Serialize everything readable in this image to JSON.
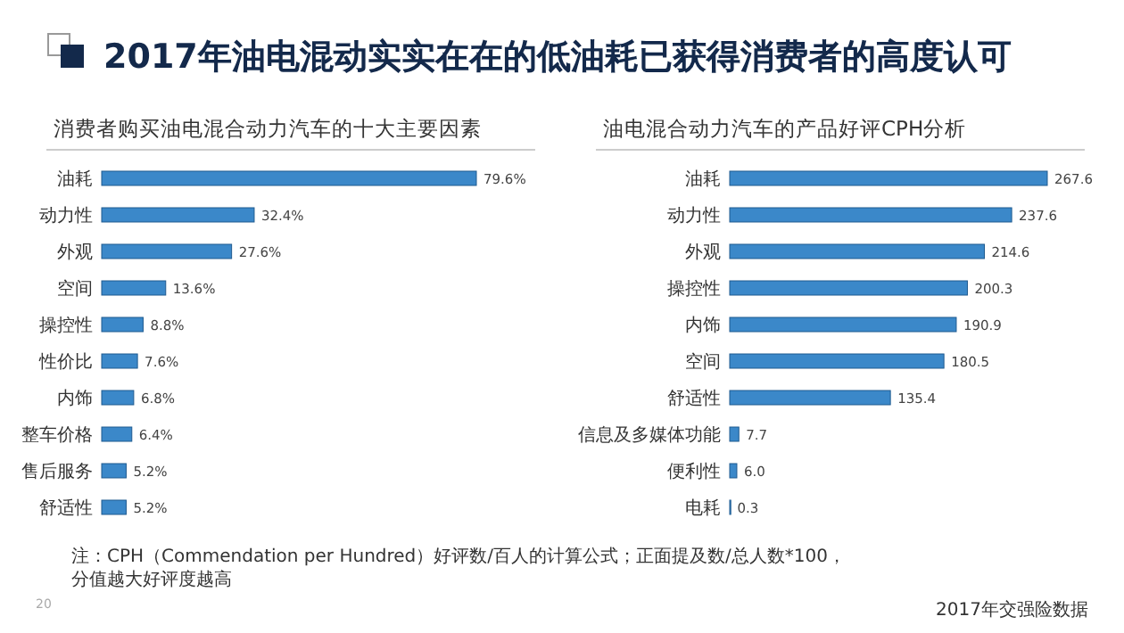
{
  "chart_data": [
    {
      "type": "bar",
      "orientation": "horizontal",
      "title": "2017年油电混动实实在在的低油耗已获得消费者的高度认可",
      "subtitle": "消费者购买油电混合动力汽车的十大主要因素",
      "categories": [
        "油耗",
        "动力性",
        "外观",
        "空间",
        "操控性",
        "性价比",
        "内饰",
        "整车价格",
        "售后服务",
        "舒适性"
      ],
      "values": [
        79.6,
        32.4,
        27.6,
        13.6,
        8.8,
        7.6,
        6.8,
        6.4,
        5.2,
        5.2
      ],
      "value_labels": [
        "79.6%",
        "32.4%",
        "27.6%",
        "13.6%",
        "8.8%",
        "7.6%",
        "6.8%",
        "6.4%",
        "5.2%",
        "5.2%"
      ],
      "color": "#3b88c9",
      "annotations": [
        "注：CPH（Commendation per Hundred）好评数/百人的计算公式；正面提及数/总人数*100，分值越大好评度越高",
        "20"
      ]
    },
    {
      "type": "bar",
      "orientation": "horizontal",
      "title": "油电混合动力汽车的产品好评CPH分析",
      "categories": [
        "油耗",
        "动力性",
        "外观",
        "操控性",
        "内饰",
        "空间",
        "舒适性",
        "信息及多媒体功能",
        "便利性",
        "电耗"
      ],
      "values": [
        267.6,
        237.6,
        214.6,
        200.3,
        190.9,
        180.5,
        135.4,
        7.7,
        6.0,
        0.3
      ],
      "value_labels": [
        "267.6",
        "237.6",
        "214.6",
        "200.3",
        "190.9",
        "180.5",
        "135.4",
        "7.7",
        "6.0",
        "0.3"
      ],
      "color": "#3b88c9",
      "annotations": [
        "2017年交强险数据"
      ]
    }
  ]
}
